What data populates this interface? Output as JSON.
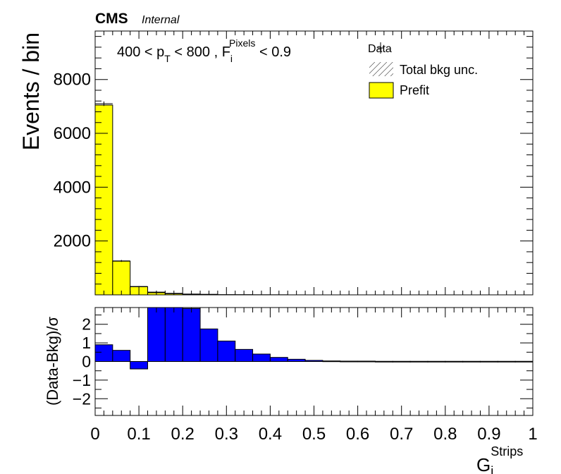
{
  "header": {
    "experiment": "CMS",
    "status": "Internal"
  },
  "selection": {
    "pt_lead": "400 < p",
    "pt_sub": "T",
    "pt_mid": " < 800 , F",
    "f_sub": "i",
    "f_sup": "Pixels",
    "f_tail": " < 0.9"
  },
  "legend": {
    "data": "Data",
    "unc": "Total bkg unc.",
    "prefit": "Prefit"
  },
  "colors": {
    "prefit": "#ffff00",
    "ratio": "#0000ff"
  },
  "chart_data": [
    {
      "type": "bar",
      "bin_edges": [
        0,
        0.04,
        0.08,
        0.12,
        0.16,
        0.2,
        0.24,
        0.28,
        0.32,
        0.36,
        0.4,
        0.44,
        0.48,
        0.52,
        0.56,
        0.6,
        0.64,
        0.68,
        0.72,
        0.76,
        0.8,
        0.84,
        0.88,
        0.92,
        0.96,
        1.0
      ],
      "series": [
        {
          "name": "Prefit",
          "values": [
            7050,
            1250,
            300,
            80,
            40,
            20,
            15,
            5,
            3,
            2,
            1,
            1,
            0,
            0,
            0,
            0,
            0,
            0,
            0,
            0,
            0,
            0,
            0,
            0,
            0
          ]
        },
        {
          "name": "Data",
          "values": [
            7100,
            1260,
            310,
            100,
            55,
            30,
            20,
            8,
            5,
            3,
            2,
            1,
            1,
            0,
            0,
            0,
            0,
            0,
            0,
            0,
            0,
            0,
            0,
            0,
            0
          ]
        }
      ],
      "ylabel": "Events / bin",
      "xlim": [
        0,
        1
      ],
      "ylim": [
        0,
        9800
      ],
      "yticks": [
        2000,
        4000,
        6000,
        8000
      ]
    },
    {
      "type": "bar",
      "bin_edges": [
        0,
        0.04,
        0.08,
        0.12,
        0.16,
        0.2,
        0.24,
        0.28,
        0.32,
        0.36,
        0.4,
        0.44,
        0.48,
        0.52,
        0.56,
        0.6,
        0.64,
        0.68,
        0.72,
        0.76,
        0.8,
        0.84,
        0.88,
        0.92,
        0.96,
        1.0
      ],
      "values": [
        0.9,
        0.6,
        -0.4,
        3.3,
        3.0,
        2.85,
        1.75,
        1.1,
        0.65,
        0.4,
        0.22,
        0.12,
        0.06,
        0.03,
        0.02,
        0.02,
        0.01,
        0.01,
        0.01,
        0.01,
        0.01,
        0.01,
        0.01,
        0.01,
        0.01
      ],
      "ylabel": "(Data-Bkg)/σ",
      "xlabel_main": "G",
      "xlabel_sub": "i",
      "xlabel_sup": "Strips",
      "xlim": [
        0,
        1
      ],
      "ylim": [
        -2.9,
        2.9
      ],
      "yticks": [
        -2,
        -1,
        0,
        1,
        2
      ],
      "xticks": [
        0,
        0.1,
        0.2,
        0.3,
        0.4,
        0.5,
        0.6,
        0.7,
        0.8,
        0.9,
        1
      ],
      "xtick_labels": [
        "0",
        "0.1",
        "0.2",
        "0.3",
        "0.4",
        "0.5",
        "0.6",
        "0.7",
        "0.8",
        "0.9",
        "1"
      ]
    }
  ]
}
